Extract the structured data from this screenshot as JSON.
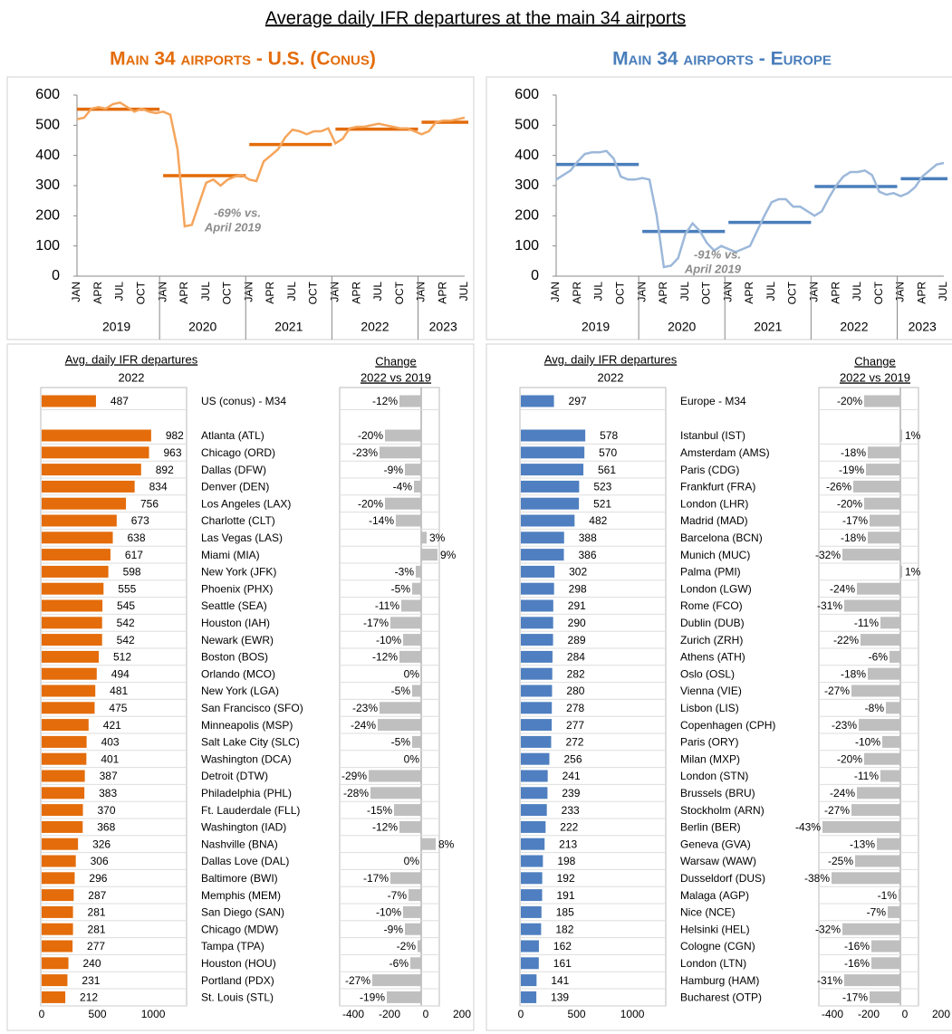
{
  "title": "Average daily IFR departures at the main 34 airports",
  "chart_data": [
    {
      "panel_title": "Main 34 airports - U.S. (Conus)",
      "line": {
        "type": "line",
        "color": "#f5a55c",
        "average_color": "#e36c0a",
        "categories": [
          "JAN",
          null,
          null,
          "APR",
          null,
          null,
          "JUL",
          null,
          null,
          "OCT",
          null,
          null,
          "JAN",
          null,
          null,
          "APR",
          null,
          null,
          "JUL",
          null,
          null,
          "OCT",
          null,
          null,
          "JAN",
          null,
          null,
          "APR",
          null,
          null,
          "JUL",
          null,
          null,
          "OCT",
          null,
          null,
          "JAN",
          null,
          null,
          "APR",
          null,
          null,
          "JUL",
          null,
          null,
          "OCT",
          null,
          null,
          "JAN",
          null,
          null,
          "APR",
          null,
          null,
          "JUL"
        ],
        "years": [
          "2019",
          "2020",
          "2021",
          "2022",
          "2023"
        ],
        "values": [
          520,
          525,
          555,
          560,
          555,
          570,
          575,
          560,
          545,
          555,
          545,
          540,
          545,
          535,
          420,
          165,
          170,
          240,
          310,
          320,
          300,
          320,
          330,
          335,
          320,
          315,
          380,
          400,
          420,
          460,
          485,
          480,
          470,
          480,
          480,
          490,
          440,
          455,
          490,
          495,
          495,
          500,
          505,
          500,
          495,
          490,
          490,
          480,
          470,
          480,
          510,
          515,
          515,
          520,
          525
        ],
        "averages": [
          553,
          333,
          436,
          487,
          510
        ],
        "ylim": [
          0,
          600
        ],
        "yticks": [
          0,
          100,
          200,
          300,
          400,
          500,
          600
        ],
        "annotation": [
          "-69% vs.",
          "April 2019"
        ]
      },
      "table": {
        "type": "bar",
        "color": "#e46c0a",
        "change_color": "#bfbfbf",
        "value_header": "Avg. daily IFR departures",
        "value_year": "2022",
        "change_header": "Change",
        "change_subheader": "2022 vs 2019",
        "summary": {
          "name": "US (conus) - M34",
          "value": 487,
          "change": -12,
          "change_label": "-12%"
        },
        "names": [
          "Atlanta (ATL)",
          "Chicago (ORD)",
          "Dallas (DFW)",
          "Denver (DEN)",
          "Los Angeles (LAX)",
          "Charlotte (CLT)",
          "Las Vegas (LAS)",
          "Miami (MIA)",
          "New York (JFK)",
          "Phoenix (PHX)",
          "Seattle (SEA)",
          "Houston (IAH)",
          "Newark (EWR)",
          "Boston (BOS)",
          "Orlando (MCO)",
          "New York (LGA)",
          "San Francisco (SFO)",
          "Minneapolis (MSP)",
          "Salt Lake City (SLC)",
          "Washington (DCA)",
          "Detroit (DTW)",
          "Philadelphia (PHL)",
          "Ft. Lauderdale (FLL)",
          "Washington (IAD)",
          "Nashville (BNA)",
          "Dallas Love (DAL)",
          "Baltimore (BWI)",
          "Memphis (MEM)",
          "San Diego (SAN)",
          "Chicago (MDW)",
          "Tampa (TPA)",
          "Houston (HOU)",
          "Portland (PDX)",
          "St. Louis (STL)"
        ],
        "values": [
          982,
          963,
          892,
          834,
          756,
          673,
          638,
          617,
          598,
          555,
          545,
          542,
          542,
          512,
          494,
          481,
          475,
          421,
          403,
          401,
          387,
          383,
          370,
          368,
          326,
          306,
          296,
          287,
          281,
          281,
          277,
          240,
          231,
          212
        ],
        "changes": [
          -20,
          -23,
          -9,
          -4,
          -20,
          -14,
          3,
          9,
          -3,
          -5,
          -11,
          -17,
          -10,
          -12,
          0,
          -5,
          -23,
          -24,
          -5,
          0,
          -29,
          -28,
          -15,
          -12,
          8,
          0,
          -17,
          -7,
          -10,
          -9,
          -2,
          -6,
          -27,
          -19
        ],
        "change_labels": [
          "-20%",
          "-23%",
          "-9%",
          "-4%",
          "-20%",
          "-14%",
          "3%",
          "9%",
          "-3%",
          "-5%",
          "-11%",
          "-17%",
          "-10%",
          "-12%",
          "0%",
          "-5%",
          "-23%",
          "-24%",
          "-5%",
          "0%",
          "-29%",
          "-28%",
          "-15%",
          "-12%",
          "8%",
          "0%",
          "-17%",
          "-7%",
          "-10%",
          "-9%",
          "-2%",
          "-6%",
          "-27%",
          "-19%"
        ],
        "xlim": [
          0,
          1300
        ],
        "xticks": [
          0,
          500,
          1000
        ],
        "change_xlim": [
          -45,
          10
        ],
        "change_tick_xlim": [
          -475,
          275
        ],
        "change_xticks": [
          -400,
          -200,
          0,
          200
        ]
      }
    },
    {
      "panel_title": "Main 34 airports - Europe",
      "line": {
        "type": "line",
        "color": "#9cb8da",
        "average_color": "#4a7ebb",
        "categories": [
          "JAN",
          null,
          null,
          "APR",
          null,
          null,
          "JUL",
          null,
          null,
          "OCT",
          null,
          null,
          "JAN",
          null,
          null,
          "APR",
          null,
          null,
          "JUL",
          null,
          null,
          "OCT",
          null,
          null,
          "JAN",
          null,
          null,
          "APR",
          null,
          null,
          "JUL",
          null,
          null,
          "OCT",
          null,
          null,
          "JAN",
          null,
          null,
          "APR",
          null,
          null,
          "JUL",
          null,
          null,
          "OCT",
          null,
          null,
          "JAN",
          null,
          null,
          "APR",
          null,
          null,
          "JUL"
        ],
        "years": [
          "2019",
          "2020",
          "2021",
          "2022",
          "2023"
        ],
        "values": [
          320,
          335,
          350,
          380,
          405,
          410,
          410,
          415,
          390,
          330,
          320,
          320,
          325,
          320,
          200,
          30,
          35,
          60,
          140,
          175,
          150,
          110,
          85,
          100,
          90,
          80,
          90,
          100,
          150,
          200,
          245,
          255,
          255,
          230,
          230,
          215,
          200,
          215,
          260,
          300,
          330,
          345,
          345,
          350,
          335,
          280,
          270,
          275,
          265,
          275,
          295,
          330,
          350,
          370,
          375
        ],
        "averages": [
          370,
          148,
          178,
          297,
          323
        ],
        "ylim": [
          0,
          600
        ],
        "yticks": [
          0,
          100,
          200,
          300,
          400,
          500,
          600
        ],
        "annotation": [
          "-91% vs.",
          "April 2019"
        ]
      },
      "table": {
        "type": "bar",
        "color": "#4f7fc0",
        "change_color": "#bfbfbf",
        "value_header": "Avg. daily IFR departures",
        "value_year": "2022",
        "change_header": "Change",
        "change_subheader": "2022 vs 2019",
        "summary": {
          "name": "Europe - M34",
          "value": 297,
          "change": -20,
          "change_label": "-20%"
        },
        "names": [
          "Istanbul (IST)",
          "Amsterdam (AMS)",
          "Paris (CDG)",
          "Frankfurt (FRA)",
          "London (LHR)",
          "Madrid (MAD)",
          "Barcelona (BCN)",
          "Munich (MUC)",
          "Palma (PMI)",
          "London (LGW)",
          "Rome (FCO)",
          "Dublin (DUB)",
          "Zurich (ZRH)",
          "Athens (ATH)",
          "Oslo (OSL)",
          "Vienna (VIE)",
          "Lisbon (LIS)",
          "Copenhagen (CPH)",
          "Paris (ORY)",
          "Milan (MXP)",
          "London (STN)",
          "Brussels (BRU)",
          "Stockholm (ARN)",
          "Berlin (BER)",
          "Geneva (GVA)",
          "Warsaw (WAW)",
          "Dusseldorf (DUS)",
          "Malaga (AGP)",
          "Nice (NCE)",
          "Helsinki (HEL)",
          "Cologne (CGN)",
          "London (LTN)",
          "Hamburg (HAM)",
          "Bucharest (OTP)"
        ],
        "values": [
          578,
          570,
          561,
          523,
          521,
          482,
          388,
          386,
          302,
          298,
          291,
          290,
          289,
          284,
          282,
          280,
          278,
          277,
          272,
          256,
          241,
          239,
          233,
          222,
          213,
          198,
          192,
          191,
          185,
          182,
          162,
          161,
          141,
          139
        ],
        "changes": [
          1,
          -18,
          -19,
          -26,
          -20,
          -17,
          -18,
          -32,
          1,
          -24,
          -31,
          -11,
          -22,
          -6,
          -18,
          -27,
          -8,
          -23,
          -10,
          -20,
          -11,
          -24,
          -27,
          -43,
          -13,
          -25,
          -38,
          -1,
          -7,
          -32,
          -16,
          -16,
          -31,
          -17
        ],
        "change_labels": [
          "1%",
          "-18%",
          "-19%",
          "-26%",
          "-20%",
          "-17%",
          "-18%",
          "-32%",
          "1%",
          "-24%",
          "-31%",
          "-11%",
          "-22%",
          "-6%",
          "-18%",
          "-27%",
          "-8%",
          "-23%",
          "-10%",
          "-20%",
          "-11%",
          "-24%",
          "-27%",
          "-43%",
          "-13%",
          "-25%",
          "-38%",
          "-1%",
          "-7%",
          "-32%",
          "-16%",
          "-16%",
          "-31%",
          "-17%"
        ],
        "xlim": [
          0,
          1300
        ],
        "xticks": [
          0,
          500,
          1000
        ],
        "change_xlim": [
          -45,
          10
        ],
        "change_tick_xlim": [
          -475,
          275
        ],
        "change_xticks": [
          -400,
          -200,
          0,
          200
        ]
      }
    }
  ]
}
